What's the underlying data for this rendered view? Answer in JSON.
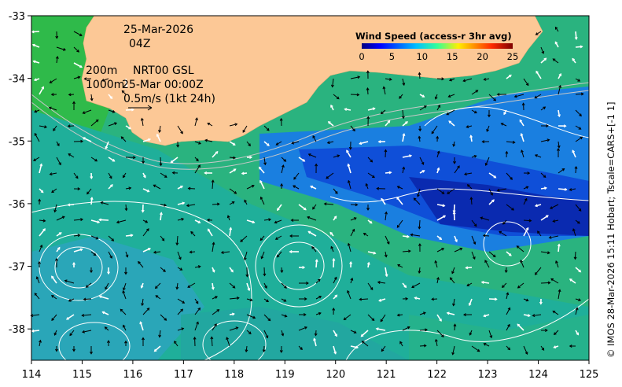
{
  "map": {
    "date": "25-Mar-2026",
    "time": "04Z",
    "contour_depth_1": "200m",
    "contour_depth_2": "1000m",
    "product": "NRT00 GSL",
    "product_time": "25-Mar 00:00Z",
    "scale_label": "0.5m/s (1kt 24h)",
    "credit": "© IMOS 28-Mar-2026 15:11 Hobart; Tscale=CARS+[-1 1]",
    "x_ticks": [
      "114",
      "115",
      "116",
      "117",
      "118",
      "119",
      "120",
      "121",
      "122",
      "123",
      "124",
      "125"
    ],
    "y_ticks": [
      "-33",
      "-34",
      "-35",
      "-36",
      "-37",
      "-38"
    ],
    "lon_range": [
      114,
      125
    ],
    "lat_range": [
      -33,
      -38.5
    ]
  },
  "colorbar": {
    "title": "Wind Speed (access-r 3hr avg)",
    "ticks": [
      "0",
      "5",
      "10",
      "15",
      "20",
      "25"
    ],
    "range": [
      0,
      25
    ]
  },
  "colors": {
    "land": "#fcc896",
    "axis": "#000000"
  }
}
